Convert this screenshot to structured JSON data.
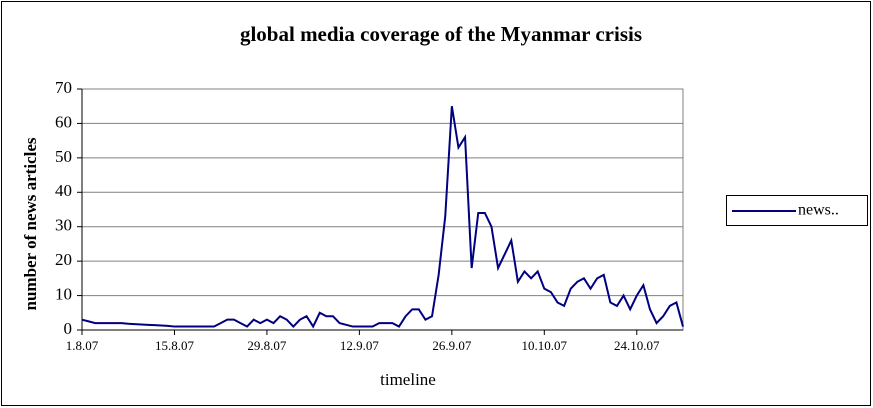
{
  "chart_data": {
    "type": "line",
    "title": "global media coverage of the Myanmar crisis",
    "xlabel": "timeline",
    "ylabel": "number of news articles",
    "categories": [
      "1.8.07",
      null,
      null,
      null,
      null,
      null,
      null,
      null,
      null,
      null,
      null,
      null,
      null,
      null,
      "15.8.07",
      null,
      null,
      null,
      null,
      null,
      null,
      null,
      null,
      null,
      null,
      null,
      null,
      null,
      "29.8.07",
      null,
      null,
      null,
      null,
      null,
      null,
      null,
      null,
      null,
      null,
      null,
      null,
      null,
      "12.9.07",
      null,
      null,
      null,
      null,
      null,
      null,
      null,
      null,
      null,
      null,
      null,
      null,
      null,
      "26.9.07",
      null,
      null,
      null,
      null,
      null,
      null,
      null,
      null,
      null,
      null,
      null,
      null,
      null,
      "10.10.07",
      null,
      null,
      null,
      null,
      null,
      null,
      null,
      null,
      null,
      null,
      null,
      null,
      null,
      "24.10.07",
      null,
      null,
      null,
      null,
      null,
      null,
      null
    ],
    "series": [
      {
        "name": "news..",
        "color": "#000080",
        "values": [
          3,
          2.5,
          2,
          2,
          2,
          2,
          2,
          1.8,
          1.7,
          1.6,
          1.5,
          1.4,
          1.3,
          1.2,
          1,
          1,
          1,
          1,
          1,
          1,
          1,
          2,
          3,
          3,
          2,
          1,
          3,
          2,
          3,
          2,
          4,
          3,
          1,
          3,
          4,
          1,
          5,
          4,
          4,
          2,
          1.5,
          1,
          1,
          1,
          1,
          2,
          2,
          2,
          1,
          4,
          6,
          6,
          3,
          4,
          16,
          33,
          65,
          53,
          56,
          18,
          34,
          34,
          30,
          18,
          22,
          26,
          14,
          17,
          15,
          17,
          12,
          11,
          8,
          7,
          12,
          14,
          15,
          12,
          15,
          16,
          8,
          7,
          10,
          6,
          10,
          13,
          6,
          2,
          4,
          7,
          8,
          1
        ]
      }
    ],
    "ylim": [
      0,
      70
    ],
    "yticks": [
      0,
      10,
      20,
      30,
      40,
      50,
      60,
      70
    ],
    "grid": true,
    "legend": "right"
  }
}
